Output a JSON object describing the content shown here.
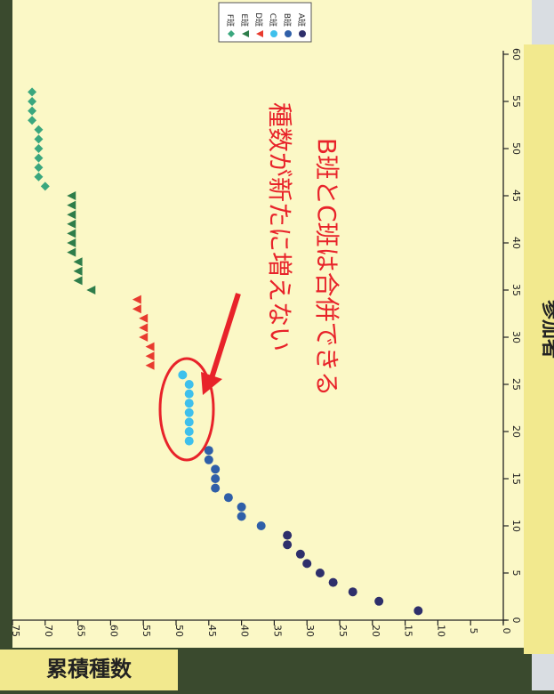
{
  "chart_data": {
    "type": "scatter",
    "orientation": "rotated 90° clockwise (x axis runs top to bottom, y axis runs right to left)",
    "xlabel": "参加者",
    "ylabel": "累積種数",
    "xlim": [
      0,
      60
    ],
    "ylim": [
      0,
      75
    ],
    "x_ticks": [
      0,
      5,
      10,
      15,
      20,
      25,
      30,
      35,
      40,
      45,
      50,
      55,
      60
    ],
    "y_ticks": [
      0,
      5,
      10,
      15,
      20,
      25,
      30,
      35,
      40,
      45,
      50,
      55,
      60,
      65,
      70,
      75
    ],
    "grid": false,
    "legend_position": "top-right",
    "series": [
      {
        "name": "A班",
        "marker": "circle",
        "color": "#2e2f6b",
        "x": [
          1,
          2,
          3,
          4,
          5,
          6,
          7,
          8,
          9
        ],
        "y": [
          13,
          19,
          23,
          26,
          28,
          30,
          31,
          33,
          33
        ]
      },
      {
        "name": "B班",
        "marker": "circle",
        "color": "#2f5fa8",
        "x": [
          10,
          11,
          12,
          13,
          14,
          15,
          16,
          17,
          18
        ],
        "y": [
          37,
          40,
          40,
          42,
          44,
          44,
          44,
          45,
          45
        ]
      },
      {
        "name": "C班",
        "marker": "circle",
        "color": "#3ec0ec",
        "x": [
          19,
          20,
          21,
          22,
          23,
          24,
          25,
          26
        ],
        "y": [
          48,
          48,
          48,
          48,
          48,
          48,
          48,
          49
        ]
      },
      {
        "name": "D班",
        "marker": "triangle",
        "color": "#e83b2f",
        "x": [
          27,
          28,
          29,
          30,
          31,
          32,
          33,
          34
        ],
        "y": [
          54,
          54,
          54,
          55,
          55,
          55,
          56,
          56
        ]
      },
      {
        "name": "E班",
        "marker": "triangle",
        "color": "#2e7d4a",
        "x": [
          35,
          36,
          37,
          38,
          39,
          40,
          41,
          42,
          43,
          44,
          45
        ],
        "y": [
          63,
          65,
          65,
          65,
          66,
          66,
          66,
          66,
          66,
          66,
          66
        ]
      },
      {
        "name": "F班",
        "marker": "diamond",
        "color": "#3aa77e",
        "x": [
          46,
          47,
          48,
          49,
          50,
          51,
          52,
          53,
          54,
          55,
          56
        ],
        "y": [
          70,
          71,
          71,
          71,
          71,
          71,
          71,
          72,
          72,
          72,
          72
        ]
      }
    ],
    "annotations": [
      {
        "text": "種数が新たに増えない",
        "color": "#e8232a"
      },
      {
        "text": "B班とC班は合併できる",
        "color": "#e8232a"
      }
    ]
  },
  "colors": {
    "plot_background": "#fbf8c6",
    "axis_label_panel": "#f2e98e",
    "frame": "#3a4a2e",
    "annotation": "#e8232a"
  }
}
